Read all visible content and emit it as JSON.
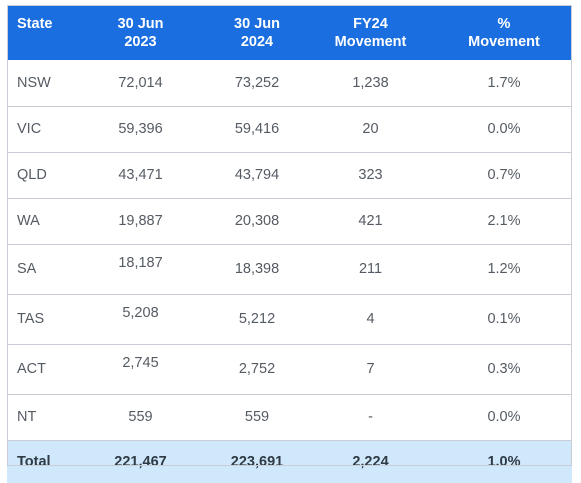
{
  "headers": [
    "State",
    "30 Jun\n2023",
    "30 Jun\n2024",
    "FY24\nMovement",
    "%\nMovement"
  ],
  "rows": [
    [
      "NSW",
      "72,014",
      "73,252",
      "1,238",
      "1.7%"
    ],
    [
      "VIC",
      "59,396",
      "59,416",
      "20",
      "0.0%"
    ],
    [
      "QLD",
      "43,471",
      "43,794",
      "323",
      "0.7%"
    ],
    [
      "WA",
      "19,887",
      "20,308",
      "421",
      "2.1%"
    ],
    [
      "SA",
      "18,187",
      "18,398",
      "211",
      "1.2%"
    ],
    [
      "TAS",
      "5,208",
      "5,212",
      "4",
      "0.1%"
    ],
    [
      "ACT",
      "2,745",
      "2,752",
      "7",
      "0.3%"
    ],
    [
      "NT",
      "559",
      "559",
      "-",
      "0.0%"
    ]
  ],
  "total": [
    "Total",
    "221,467",
    "223,691",
    "2,224",
    "1.0%"
  ],
  "colors": {
    "header_bg": "#1a6ee0",
    "total_bg": "#cfe8fb",
    "border": "#c9ced6"
  }
}
